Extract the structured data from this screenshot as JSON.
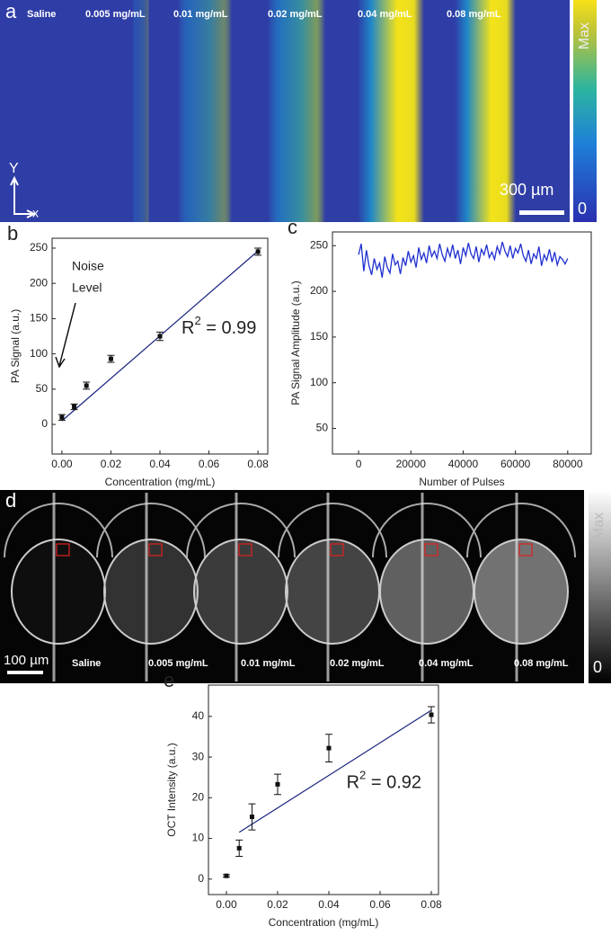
{
  "images": [
    {
      "panel_label": "a",
      "labels": [
        "Saline",
        "0.005 mg/mL",
        "0.01 mg/mL",
        "0.02 mg/mL",
        "0.04 mg/mL",
        "0.08 mg/mL"
      ],
      "axis_y": "Y",
      "axis_x": "x",
      "scale_bar": "300 µm",
      "colorbar_max": "Max",
      "colorbar_min": "0"
    },
    {
      "panel_label": "d",
      "labels": [
        "Saline",
        "0.005 mg/mL",
        "0.01 mg/mL",
        "0.02 mg/mL",
        "0.04 mg/mL",
        "0.08 mg/mL"
      ],
      "scale_bar": "100 µm",
      "colorbar_max": "Max",
      "colorbar_min": "0"
    }
  ],
  "chart_data": [
    {
      "type": "scatter",
      "panel_label": "b",
      "xlabel": "Concentration (mg/mL)",
      "ylabel": "PA  Signal (a.u.)",
      "xlim": [
        -0.004,
        0.084
      ],
      "ylim": [
        -42,
        264
      ],
      "xticks": [
        {
          "value": 0,
          "label": "0.00"
        },
        0.02,
        0.04,
        0.06,
        0.08
      ],
      "yticks": [
        0,
        50,
        100,
        150,
        200,
        250
      ],
      "series": [
        {
          "x": [
            0,
            0.005,
            0.01,
            0.02,
            0.04,
            0.08
          ],
          "values": [
            10,
            25,
            55,
            93,
            125,
            245
          ],
          "errors": [
            4,
            4,
            5,
            5,
            6,
            5
          ],
          "color": "#111111"
        }
      ],
      "fit": {
        "x": [
          0,
          0.08
        ],
        "values": [
          5,
          246
        ],
        "color": "#1a237e"
      },
      "annotation": {
        "text": "R",
        "sup": "2",
        "rest": " = 0.99"
      },
      "note": [
        "Noise",
        "Level"
      ]
    },
    {
      "type": "line",
      "panel_label": "c",
      "xlabel": "Number of Pulses",
      "ylabel": "PA Signal Amplitude (a.u.)",
      "xlim": [
        -10000,
        89000
      ],
      "ylim": [
        22,
        265
      ],
      "xticks": [
        0,
        20000,
        40000,
        60000,
        80000
      ],
      "yticks": [
        50,
        100,
        150,
        200,
        250
      ],
      "series": [
        {
          "color": "#1f2fd0",
          "x": [
            0,
            1000,
            2000,
            3000,
            4000,
            5000,
            6000,
            7000,
            8000,
            9000,
            10000,
            11000,
            12000,
            13000,
            14000,
            15000,
            16000,
            17000,
            18000,
            19000,
            20000,
            21000,
            22000,
            23000,
            24000,
            25000,
            26000,
            27000,
            28000,
            29000,
            30000,
            31000,
            32000,
            33000,
            34000,
            35000,
            36000,
            37000,
            38000,
            39000,
            40000,
            41000,
            42000,
            43000,
            44000,
            45000,
            46000,
            47000,
            48000,
            49000,
            50000,
            51000,
            52000,
            53000,
            54000,
            55000,
            56000,
            57000,
            58000,
            59000,
            60000,
            61000,
            62000,
            63000,
            64000,
            65000,
            66000,
            67000,
            68000,
            69000,
            70000,
            71000,
            72000,
            73000,
            74000,
            75000,
            76000,
            77000,
            78000,
            79000,
            80000
          ],
          "values": [
            240,
            252,
            222,
            245,
            228,
            218,
            236,
            224,
            231,
            215,
            238,
            226,
            220,
            241,
            229,
            233,
            219,
            237,
            228,
            244,
            232,
            239,
            226,
            248,
            235,
            242,
            231,
            250,
            238,
            244,
            236,
            252,
            240,
            233,
            247,
            238,
            251,
            236,
            245,
            230,
            248,
            239,
            253,
            241,
            236,
            249,
            232,
            246,
            240,
            251,
            237,
            243,
            235,
            249,
            241,
            254,
            244,
            238,
            250,
            236,
            247,
            242,
            252,
            239,
            233,
            245,
            230,
            241,
            236,
            249,
            228,
            240,
            234,
            246,
            232,
            243,
            229,
            238,
            235,
            230,
            236
          ]
        }
      ]
    },
    {
      "type": "scatter",
      "panel_label": "e",
      "xlabel": "Concentration (mg/mL)",
      "ylabel": "OCT Intensity (a.u.)",
      "xlim": [
        -0.007,
        0.0828
      ],
      "ylim": [
        -3.8,
        47.7
      ],
      "xticks": [
        {
          "value": 0,
          "label": "0.00"
        },
        0.02,
        0.04,
        0.06,
        0.08
      ],
      "yticks": [
        0,
        10,
        20,
        30,
        40
      ],
      "series": [
        {
          "x": [
            0,
            0.005,
            0.01,
            0.02,
            0.04,
            0.08
          ],
          "values": [
            0.8,
            7.6,
            15.3,
            23.3,
            32.2,
            40.4
          ],
          "errors": [
            0.3,
            2,
            3.2,
            2.5,
            3.4,
            2
          ],
          "color": "#111111"
        }
      ],
      "fit": {
        "x": [
          0.005,
          0.08
        ],
        "values": [
          11.5,
          41.5
        ],
        "color": "#1a237e"
      },
      "annotation": {
        "text": "R",
        "sup": "2",
        "rest": " = 0.92"
      }
    }
  ]
}
